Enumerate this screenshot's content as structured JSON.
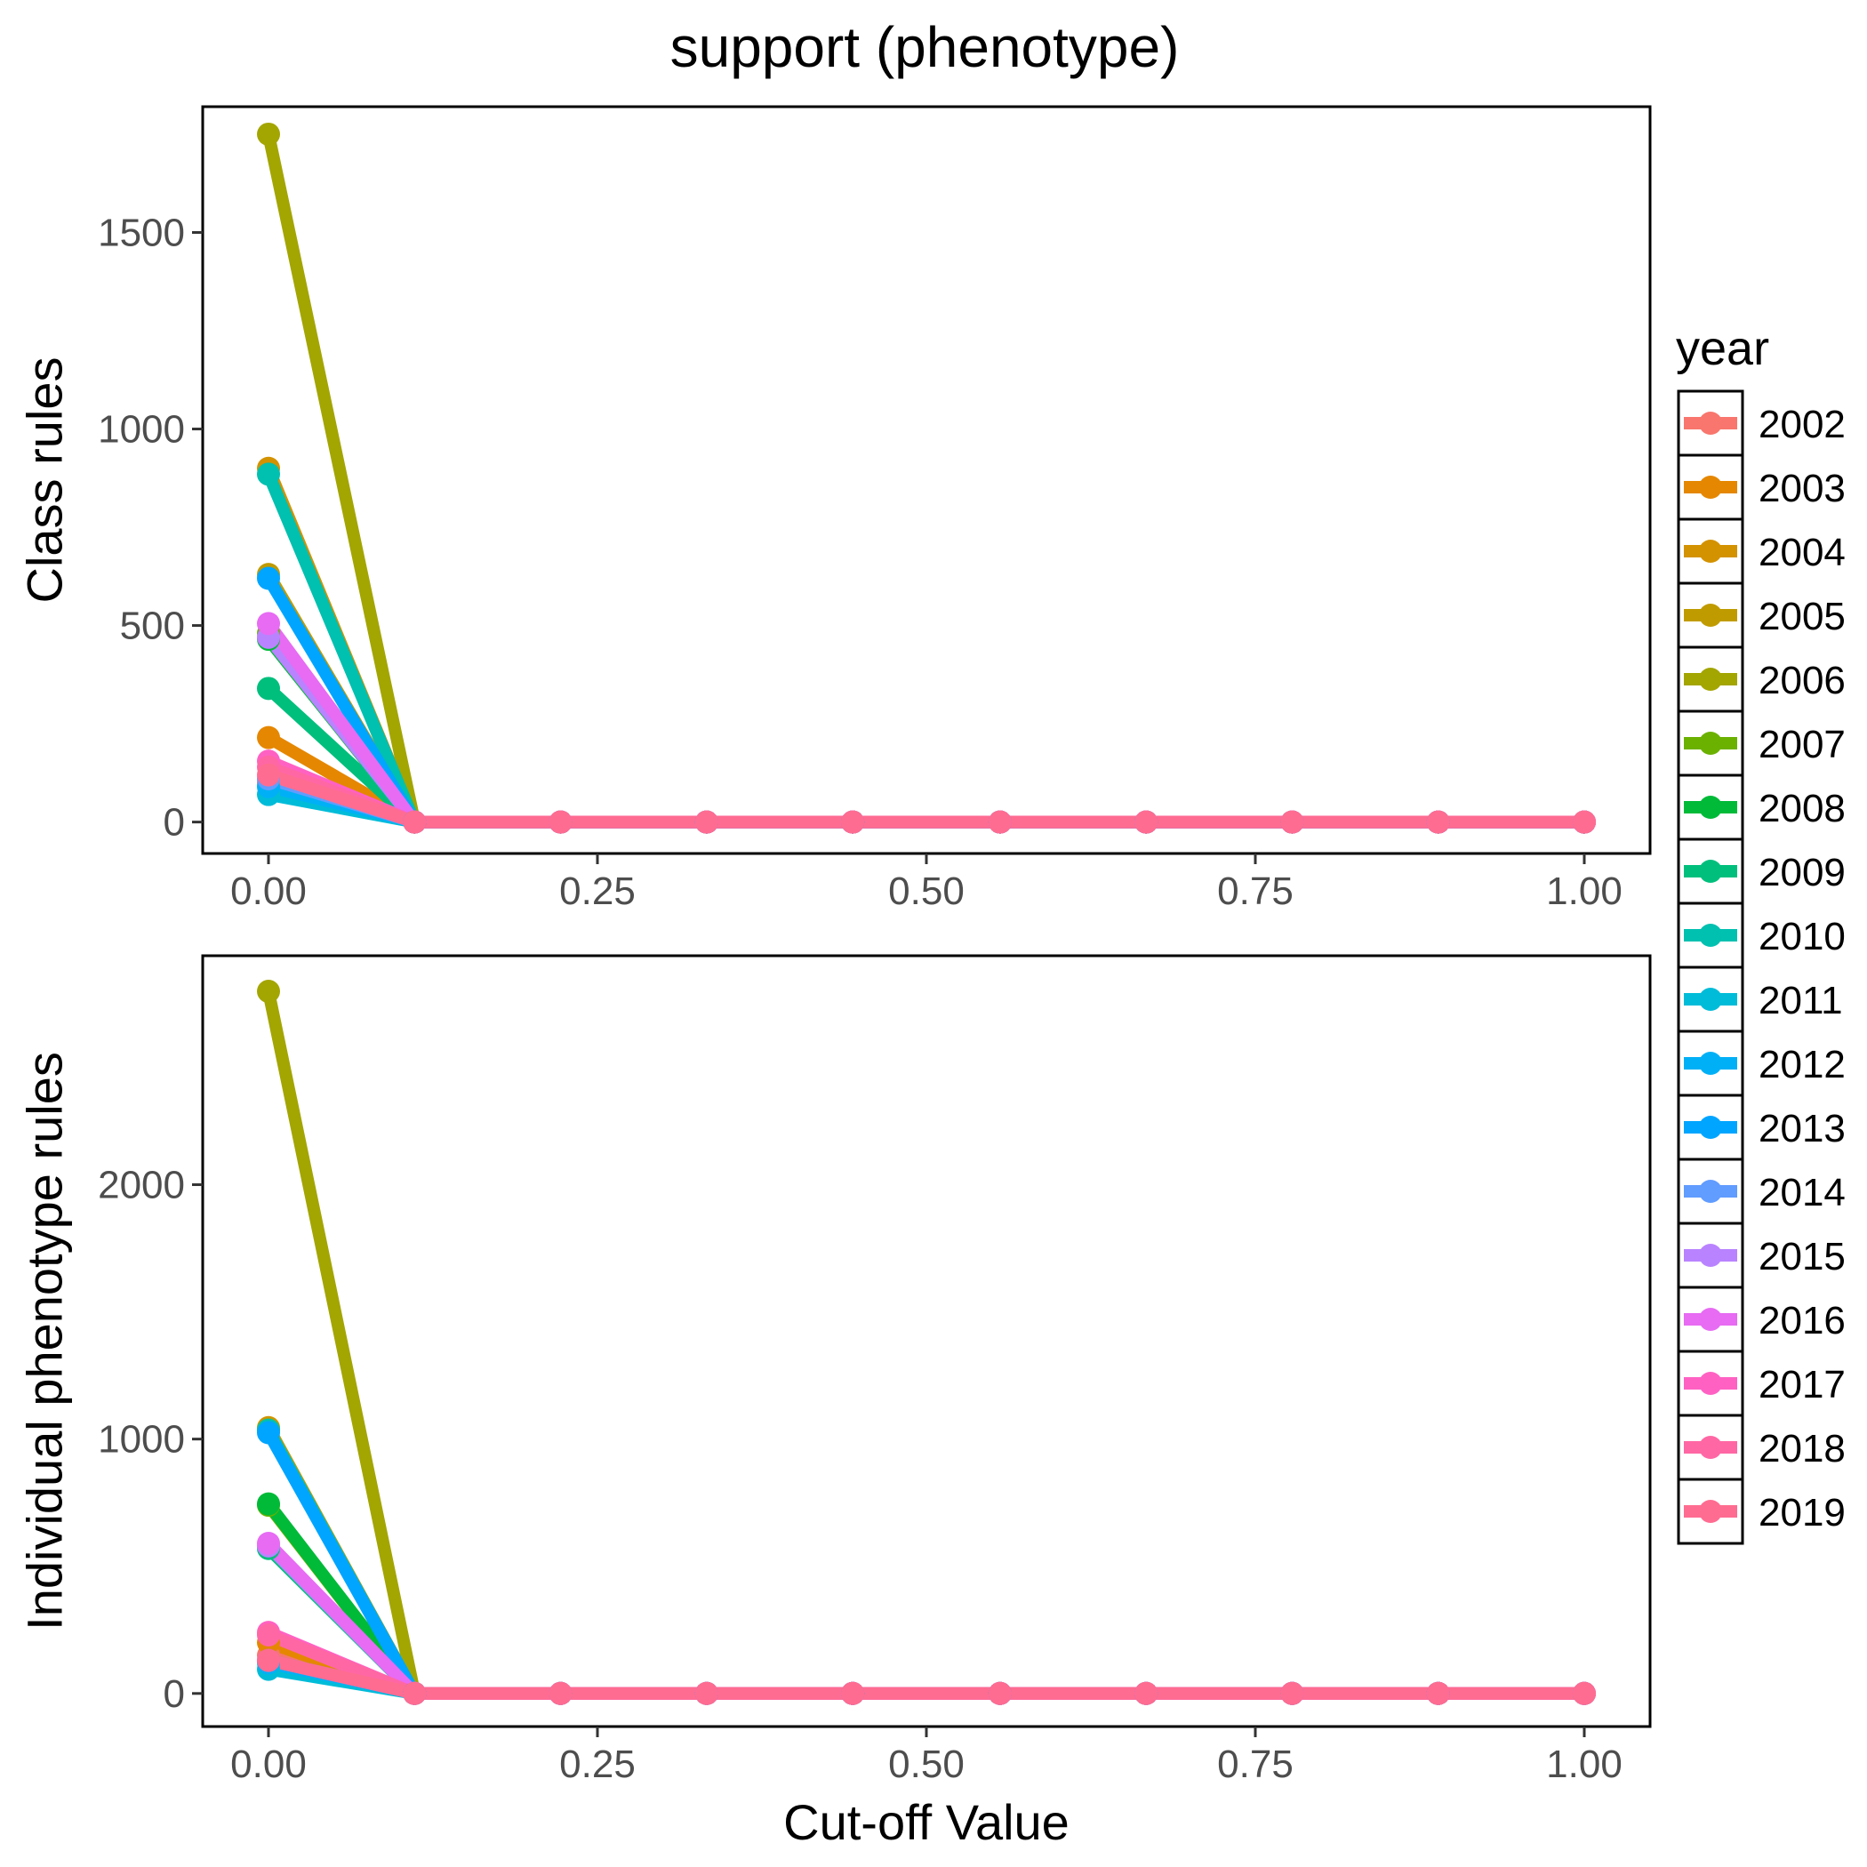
{
  "title": "support (phenotype)",
  "chart_data": [
    {
      "type": "line",
      "ylabel": "Class rules",
      "xlabel": "",
      "xlim": [
        -0.05,
        1.05
      ],
      "ylim": [
        -80,
        1820
      ],
      "xticks": [
        0,
        0.25,
        0.5,
        0.75,
        1
      ],
      "xtick_labels": [
        "0.00",
        "0.25",
        "0.50",
        "0.75",
        "1.00"
      ],
      "yticks": [
        0,
        500,
        1000,
        1500
      ],
      "ytick_labels": [
        "0",
        "500",
        "1000",
        "1500"
      ],
      "grid": false,
      "x": [
        0,
        0.111,
        0.222,
        0.333,
        0.444,
        0.556,
        0.667,
        0.778,
        0.889,
        1.0
      ],
      "series": [
        {
          "name": "2002",
          "color": "#F8766D",
          "values": [
            100,
            0,
            0,
            0,
            0,
            0,
            0,
            0,
            0,
            0
          ]
        },
        {
          "name": "2003",
          "color": "#E58700",
          "values": [
            215,
            0,
            0,
            0,
            0,
            0,
            0,
            0,
            0,
            0
          ]
        },
        {
          "name": "2004",
          "color": "#D39200",
          "values": [
            900,
            0,
            0,
            0,
            0,
            0,
            0,
            0,
            0,
            0
          ]
        },
        {
          "name": "2005",
          "color": "#C09B00",
          "values": [
            630,
            0,
            0,
            0,
            0,
            0,
            0,
            0,
            0,
            0
          ]
        },
        {
          "name": "2006",
          "color": "#A3A500",
          "values": [
            1750,
            0,
            0,
            0,
            0,
            0,
            0,
            0,
            0,
            0
          ]
        },
        {
          "name": "2007",
          "color": "#6BB100",
          "values": [
            480,
            0,
            0,
            0,
            0,
            0,
            0,
            0,
            0,
            0
          ]
        },
        {
          "name": "2008",
          "color": "#00BA38",
          "values": [
            465,
            0,
            0,
            0,
            0,
            0,
            0,
            0,
            0,
            0
          ]
        },
        {
          "name": "2009",
          "color": "#00BF7D",
          "values": [
            340,
            0,
            0,
            0,
            0,
            0,
            0,
            0,
            0,
            0
          ]
        },
        {
          "name": "2010",
          "color": "#00C0AF",
          "values": [
            885,
            0,
            0,
            0,
            0,
            0,
            0,
            0,
            0,
            0
          ]
        },
        {
          "name": "2011",
          "color": "#00BCD8",
          "values": [
            70,
            0,
            0,
            0,
            0,
            0,
            0,
            0,
            0,
            0
          ]
        },
        {
          "name": "2012",
          "color": "#00B0F6",
          "values": [
            90,
            0,
            0,
            0,
            0,
            0,
            0,
            0,
            0,
            0
          ]
        },
        {
          "name": "2013",
          "color": "#00A5FF",
          "values": [
            620,
            0,
            0,
            0,
            0,
            0,
            0,
            0,
            0,
            0
          ]
        },
        {
          "name": "2014",
          "color": "#619CFF",
          "values": [
            110,
            0,
            0,
            0,
            0,
            0,
            0,
            0,
            0,
            0
          ]
        },
        {
          "name": "2015",
          "color": "#B983FF",
          "values": [
            470,
            0,
            0,
            0,
            0,
            0,
            0,
            0,
            0,
            0
          ]
        },
        {
          "name": "2016",
          "color": "#E76BF3",
          "values": [
            505,
            0,
            0,
            0,
            0,
            0,
            0,
            0,
            0,
            0
          ]
        },
        {
          "name": "2017",
          "color": "#FF61C3",
          "values": [
            155,
            0,
            0,
            0,
            0,
            0,
            0,
            0,
            0,
            0
          ]
        },
        {
          "name": "2018",
          "color": "#FF67A4",
          "values": [
            140,
            0,
            0,
            0,
            0,
            0,
            0,
            0,
            0,
            0
          ]
        },
        {
          "name": "2019",
          "color": "#FF6C91",
          "values": [
            120,
            0,
            0,
            0,
            0,
            0,
            0,
            0,
            0,
            0
          ]
        }
      ]
    },
    {
      "type": "line",
      "ylabel": "Individual phenotype rules",
      "xlabel": "Cut-off Value",
      "xlim": [
        -0.05,
        1.05
      ],
      "ylim": [
        -130,
        2900
      ],
      "xticks": [
        0,
        0.25,
        0.5,
        0.75,
        1
      ],
      "xtick_labels": [
        "0.00",
        "0.25",
        "0.50",
        "0.75",
        "1.00"
      ],
      "yticks": [
        0,
        1000,
        2000
      ],
      "ytick_labels": [
        "0",
        "1000",
        "2000"
      ],
      "grid": false,
      "x": [
        0,
        0.111,
        0.222,
        0.333,
        0.444,
        0.556,
        0.667,
        0.778,
        0.889,
        1.0
      ],
      "series": [
        {
          "name": "2002",
          "color": "#F8766D",
          "values": [
            150,
            0,
            0,
            0,
            0,
            0,
            0,
            0,
            0,
            0
          ]
        },
        {
          "name": "2003",
          "color": "#E58700",
          "values": [
            200,
            0,
            0,
            0,
            0,
            0,
            0,
            0,
            0,
            0
          ]
        },
        {
          "name": "2004",
          "color": "#D39200",
          "values": [
            1045,
            0,
            0,
            0,
            0,
            0,
            0,
            0,
            0,
            0
          ]
        },
        {
          "name": "2005",
          "color": "#C09B00",
          "values": [
            1040,
            0,
            0,
            0,
            0,
            0,
            0,
            0,
            0,
            0
          ]
        },
        {
          "name": "2006",
          "color": "#A3A500",
          "values": [
            2760,
            0,
            0,
            0,
            0,
            0,
            0,
            0,
            0,
            0
          ]
        },
        {
          "name": "2007",
          "color": "#6BB100",
          "values": [
            740,
            0,
            0,
            0,
            0,
            0,
            0,
            0,
            0,
            0
          ]
        },
        {
          "name": "2008",
          "color": "#00BA38",
          "values": [
            745,
            0,
            0,
            0,
            0,
            0,
            0,
            0,
            0,
            0
          ]
        },
        {
          "name": "2009",
          "color": "#00BF7D",
          "values": [
            570,
            0,
            0,
            0,
            0,
            0,
            0,
            0,
            0,
            0
          ]
        },
        {
          "name": "2010",
          "color": "#00C0AF",
          "values": [
            1035,
            0,
            0,
            0,
            0,
            0,
            0,
            0,
            0,
            0
          ]
        },
        {
          "name": "2011",
          "color": "#00BCD8",
          "values": [
            95,
            0,
            0,
            0,
            0,
            0,
            0,
            0,
            0,
            0
          ]
        },
        {
          "name": "2012",
          "color": "#00B0F6",
          "values": [
            120,
            0,
            0,
            0,
            0,
            0,
            0,
            0,
            0,
            0
          ]
        },
        {
          "name": "2013",
          "color": "#00A5FF",
          "values": [
            1025,
            0,
            0,
            0,
            0,
            0,
            0,
            0,
            0,
            0
          ]
        },
        {
          "name": "2014",
          "color": "#619CFF",
          "values": [
            130,
            0,
            0,
            0,
            0,
            0,
            0,
            0,
            0,
            0
          ]
        },
        {
          "name": "2015",
          "color": "#B983FF",
          "values": [
            580,
            0,
            0,
            0,
            0,
            0,
            0,
            0,
            0,
            0
          ]
        },
        {
          "name": "2016",
          "color": "#E76BF3",
          "values": [
            590,
            0,
            0,
            0,
            0,
            0,
            0,
            0,
            0,
            0
          ]
        },
        {
          "name": "2017",
          "color": "#FF61C3",
          "values": [
            240,
            0,
            0,
            0,
            0,
            0,
            0,
            0,
            0,
            0
          ]
        },
        {
          "name": "2018",
          "color": "#FF67A4",
          "values": [
            230,
            0,
            0,
            0,
            0,
            0,
            0,
            0,
            0,
            0
          ]
        },
        {
          "name": "2019",
          "color": "#FF6C91",
          "values": [
            130,
            0,
            0,
            0,
            0,
            0,
            0,
            0,
            0,
            0
          ]
        }
      ]
    }
  ],
  "legend": {
    "title": "year",
    "position": "right",
    "items": [
      "2002",
      "2003",
      "2004",
      "2005",
      "2006",
      "2007",
      "2008",
      "2009",
      "2010",
      "2011",
      "2012",
      "2013",
      "2014",
      "2015",
      "2016",
      "2017",
      "2018",
      "2019"
    ]
  }
}
